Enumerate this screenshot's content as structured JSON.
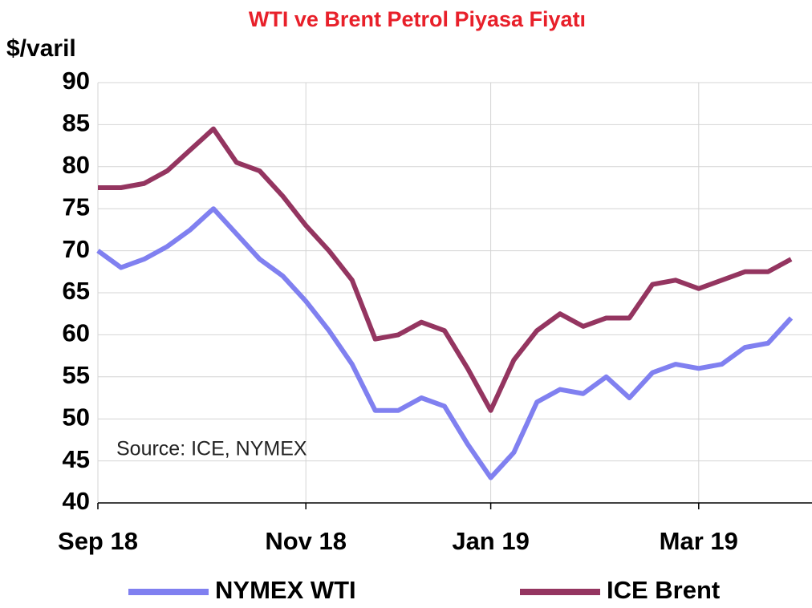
{
  "chart_data": {
    "type": "line",
    "title": "WTI ve Brent Petrol Piyasa Fiyatı",
    "y_axis_label": "$/varil",
    "annotation": "Source: ICE, NYMEX",
    "categories": [
      "Sep 18",
      null,
      null,
      null,
      null,
      null,
      null,
      null,
      null,
      "Nov 18",
      null,
      null,
      null,
      null,
      null,
      null,
      null,
      "Jan 19",
      null,
      null,
      null,
      null,
      null,
      null,
      null,
      null,
      "Mar 19",
      null,
      null,
      null,
      null
    ],
    "series": [
      {
        "name": "NYMEX WTI",
        "color": "#8080f0",
        "values": [
          70,
          68,
          69,
          70.5,
          72.5,
          75,
          72,
          69,
          67,
          64,
          60.5,
          56.5,
          51,
          51,
          52.5,
          51.5,
          47,
          43,
          46,
          52,
          53.5,
          53,
          55,
          52.5,
          55.5,
          56.5,
          56,
          56.5,
          58.5,
          59,
          62
        ]
      },
      {
        "name": "ICE Brent",
        "color": "#943560",
        "values": [
          77.5,
          77.5,
          78,
          79.5,
          82,
          84.5,
          80.5,
          79.5,
          76.5,
          73,
          70,
          66.5,
          59.5,
          60,
          61.5,
          60.5,
          56,
          51,
          57,
          60.5,
          62.5,
          61,
          62,
          62,
          66,
          66.5,
          65.5,
          66.5,
          67.5,
          67.5,
          69
        ]
      }
    ],
    "ylim": [
      40,
      90
    ],
    "yticks": [
      40,
      45,
      50,
      55,
      60,
      65,
      70,
      75,
      80,
      85,
      90
    ],
    "grid": true,
    "legend": "bottom"
  }
}
